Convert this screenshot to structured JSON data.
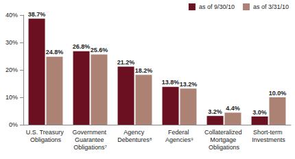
{
  "chart_data": {
    "type": "bar",
    "categories": [
      "U.S. Treasury Obligations",
      "Government Guarantee Obligations⁷",
      "Agency Debentures⁸",
      "Federal Agencies⁹",
      "Collateralized Mortgage Obligations",
      "Short-term Investments"
    ],
    "series": [
      {
        "name": "as of 9/30/10",
        "color": "#6b1020",
        "values": [
          38.7,
          26.8,
          21.2,
          13.8,
          3.2,
          3.0
        ],
        "value_labels": [
          "38.7%",
          "26.8%",
          "21.2%",
          "13.8%",
          "3.2%",
          "3.0%"
        ]
      },
      {
        "name": "as of 3/31/10",
        "color": "#ab8274",
        "values": [
          24.8,
          25.6,
          18.2,
          13.2,
          4.4,
          10.0
        ],
        "value_labels": [
          "24.8%",
          "25.6%",
          "18.2%",
          "13.2%",
          "4.4%",
          "10.0%"
        ]
      }
    ],
    "ylim": [
      0,
      40
    ],
    "yticks": [
      {
        "value": 0,
        "label": "0%"
      },
      {
        "value": 10,
        "label": "10%"
      },
      {
        "value": 20,
        "label": "20%"
      },
      {
        "value": 30,
        "label": "30%"
      },
      {
        "value": 40,
        "label": "40%"
      }
    ],
    "grid": false,
    "legend": "top-right",
    "data_labels": true
  }
}
